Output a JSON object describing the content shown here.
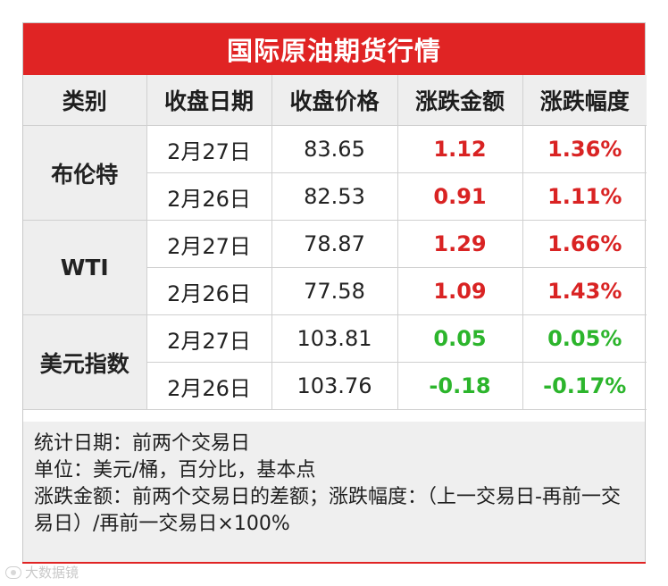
{
  "title": "国际原油期货行情",
  "headers": [
    "类别",
    "收盘日期",
    "收盘价格",
    "涨跌金额",
    "涨跌幅度"
  ],
  "groups": [
    {
      "category": "布伦特",
      "rows": [
        {
          "date": "2月27日",
          "price": "83.65",
          "change": "1.12",
          "pct": "1.36%"
        },
        {
          "date": "2月26日",
          "price": "82.53",
          "change": "0.91",
          "pct": "1.11%"
        }
      ]
    },
    {
      "category": "WTI",
      "rows": [
        {
          "date": "2月27日",
          "price": "78.87",
          "change": "1.29",
          "pct": "1.66%"
        },
        {
          "date": "2月26日",
          "price": "77.58",
          "change": "1.09",
          "pct": "1.43%"
        }
      ]
    },
    {
      "category": "美元指数",
      "rows": [
        {
          "date": "2月27日",
          "price": "103.81",
          "change": "0.05",
          "pct": "0.05%"
        },
        {
          "date": "2月26日",
          "price": "103.76",
          "change": "-0.18",
          "pct": "-0.17%"
        }
      ]
    }
  ],
  "notes": [
    "统计日期：前两个交易日",
    "单位：美元/桶，百分比，基本点",
    "涨跌金额：前两个交易日的差额；涨跌幅度：（上一交易日-再前一交易日）/再前一交易日×100%"
  ],
  "watermark": "大数据镜",
  "colors": {
    "accent": "#e02424",
    "rise": "#d92323",
    "fall": "#2cb52c"
  }
}
